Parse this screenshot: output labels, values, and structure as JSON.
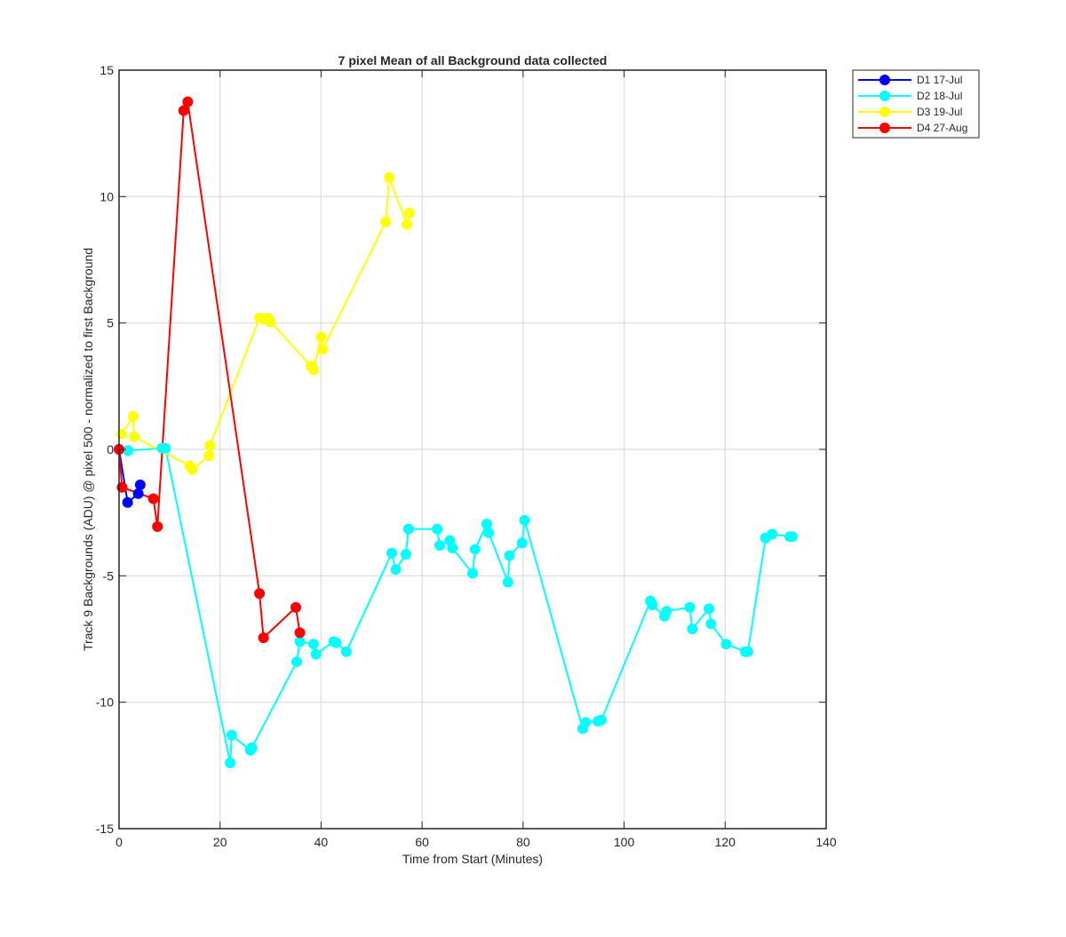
{
  "chart_data": {
    "type": "line",
    "title": "7 pixel Mean of all Background data collected",
    "xlabel": "Time from Start (Minutes)",
    "ylabel": "Track 9 Backgrounds (ADU) @ pixel 500 - normalized to first Background",
    "xlim": [
      0,
      140
    ],
    "ylim": [
      -15,
      15
    ],
    "xticks": [
      0,
      20,
      40,
      60,
      80,
      100,
      120,
      140
    ],
    "yticks": [
      -15,
      -10,
      -5,
      0,
      5,
      10,
      15
    ],
    "xtick_labels": [
      "0",
      "20",
      "40",
      "60",
      "80",
      "100",
      "120",
      "140"
    ],
    "ytick_labels": [
      "-15",
      "-10",
      "-5",
      "0",
      "5",
      "10",
      "15"
    ],
    "grid": true,
    "legend_position": "outside-top-right",
    "series": [
      {
        "name": "D1 17-Jul",
        "color": "#0000ff",
        "marker": "circle",
        "x": [
          0,
          1.7,
          3.8,
          4.2
        ],
        "y": [
          0,
          -2.1,
          -1.75,
          -1.4
        ]
      },
      {
        "name": "D2 18-Jul",
        "color": "#00ffff",
        "marker": "circle",
        "x": [
          0,
          1.8,
          8.5,
          9.2,
          22.0,
          22.3,
          26.0,
          26.3,
          35.2,
          35.8,
          38.5,
          39.0,
          42.5,
          43.0,
          45.0,
          54.0,
          54.8,
          56.8,
          57.3,
          63.0,
          63.5,
          65.5,
          66.0,
          70.0,
          70.5,
          72.8,
          73.2,
          77.0,
          77.3,
          79.8,
          80.3,
          91.8,
          92.4,
          94.8,
          95.5,
          105.2,
          105.6,
          108.0,
          108.4,
          113.0,
          113.5,
          116.8,
          117.2,
          120.2,
          124.0,
          124.5,
          128.0,
          129.3,
          132.8,
          133.3
        ],
        "y": [
          0,
          -0.05,
          0.05,
          0.05,
          -12.4,
          -11.3,
          -11.9,
          -11.8,
          -8.4,
          -7.6,
          -7.7,
          -8.1,
          -7.6,
          -7.65,
          -8.0,
          -4.1,
          -4.75,
          -4.15,
          -3.15,
          -3.15,
          -3.8,
          -3.6,
          -3.9,
          -4.9,
          -3.95,
          -2.95,
          -3.3,
          -5.25,
          -4.2,
          -3.7,
          -2.8,
          -11.05,
          -10.8,
          -10.75,
          -10.7,
          -6.0,
          -6.15,
          -6.6,
          -6.4,
          -6.25,
          -7.1,
          -6.3,
          -6.9,
          -7.7,
          -8.0,
          -8.0,
          -3.5,
          -3.35,
          -3.45,
          -3.45
        ]
      },
      {
        "name": "D3 19-Jul",
        "color": "#ffff00",
        "marker": "circle",
        "x": [
          0.5,
          2.8,
          3.0,
          14.0,
          14.5,
          17.8,
          18.0,
          27.8,
          28.5,
          29.5,
          30.0,
          38.0,
          38.5,
          40.0,
          40.3,
          52.8,
          53.5,
          57.0,
          57.5
        ],
        "y": [
          0.6,
          1.3,
          0.5,
          -0.65,
          -0.8,
          -0.25,
          0.15,
          5.2,
          5.15,
          5.2,
          5.05,
          3.3,
          3.15,
          4.45,
          3.95,
          9.0,
          10.75,
          8.9,
          9.35
        ]
      },
      {
        "name": "D4 27-Aug",
        "color": "#ff0000",
        "marker": "circle",
        "x": [
          0,
          0.6,
          6.8,
          7.6,
          12.8,
          13.6,
          27.8,
          28.6,
          35.0,
          35.8
        ],
        "y": [
          0,
          -1.5,
          -1.95,
          -3.05,
          13.4,
          13.75,
          -5.7,
          -7.45,
          -6.25,
          -7.25
        ]
      }
    ]
  }
}
